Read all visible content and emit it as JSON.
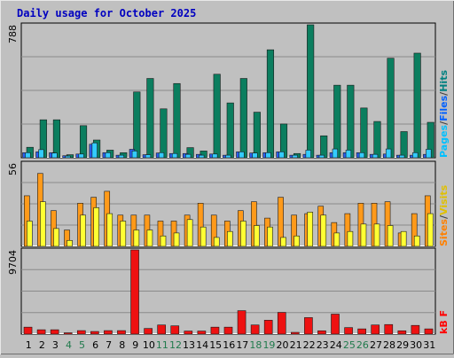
{
  "chart_data": {
    "type": "bar",
    "title": "Daily usage for October 2025",
    "categories": [
      "1",
      "2",
      "3",
      "4",
      "5",
      "6",
      "7",
      "8",
      "9",
      "10",
      "11",
      "12",
      "13",
      "14",
      "15",
      "16",
      "17",
      "18",
      "19",
      "20",
      "21",
      "22",
      "23",
      "24",
      "25",
      "26",
      "27",
      "28",
      "29",
      "30",
      "31"
    ],
    "weekend_days": [
      "4",
      "5",
      "11",
      "12",
      "18",
      "19",
      "25",
      "26"
    ],
    "panels": [
      {
        "id": "top",
        "max_label": "788",
        "ylim": [
          0,
          788
        ],
        "legend": [
          {
            "label": "Pages",
            "color": "#00c0ff"
          },
          {
            "label": "/",
            "color": "#404040"
          },
          {
            "label": "Files",
            "color": "#0060ff"
          },
          {
            "label": "/",
            "color": "#404040"
          },
          {
            "label": "Hits",
            "color": "#008080"
          }
        ],
        "series": [
          {
            "name": "Hits",
            "color": "#0b7e5f",
            "values": [
              62,
              225,
              225,
              18,
              190,
              105,
              45,
              30,
              390,
              470,
              290,
              440,
              60,
              40,
              495,
              325,
              470,
              270,
              640,
              200,
              25,
              788,
              130,
              430,
              430,
              295,
              215,
              590,
              155,
              620,
              210
            ]
          },
          {
            "name": "Files",
            "color": "#2a5ff0",
            "values": [
              30,
              35,
              30,
              12,
              22,
              80,
              30,
              15,
              50,
              18,
              28,
              25,
              25,
              20,
              22,
              15,
              35,
              28,
              30,
              35,
              15,
              20,
              15,
              30,
              30,
              30,
              20,
              22,
              15,
              15,
              20
            ]
          },
          {
            "name": "Pages",
            "color": "#33ccff",
            "values": [
              30,
              48,
              28,
              10,
              22,
              88,
              30,
              15,
              40,
              18,
              30,
              25,
              20,
              15,
              22,
              15,
              35,
              28,
              30,
              35,
              15,
              45,
              15,
              52,
              45,
              30,
              20,
              52,
              15,
              30,
              50
            ]
          }
        ]
      },
      {
        "id": "middle",
        "max_label": "56",
        "ylim": [
          0,
          56
        ],
        "legend": [
          {
            "label": "Sites",
            "color": "#ff8000"
          },
          {
            "label": "/",
            "color": "#404040"
          },
          {
            "label": "Visits",
            "color": "#e0c000"
          }
        ],
        "series": [
          {
            "name": "Visits",
            "color": "#ffff33",
            "values": [
              17,
              30,
              12,
              4,
              21,
              26,
              22,
              17,
              11,
              11,
              7,
              9,
              18,
              13,
              6,
              10,
              17,
              14,
              13,
              6,
              7,
              23,
              21,
              9,
              10,
              15,
              15,
              14,
              10,
              7,
              22
            ]
          },
          {
            "name": "Sites",
            "color": "#ff9a1a",
            "values": [
              34,
              49,
              24,
              11,
              29,
              33,
              37,
              21,
              21,
              21,
              17,
              17,
              21,
              29,
              21,
              17,
              24,
              30,
              19,
              33,
              21,
              22,
              27,
              16,
              22,
              29,
              29,
              30,
              9,
              22,
              34
            ]
          }
        ]
      },
      {
        "id": "bottom",
        "max_label": "9704",
        "ylim": [
          0,
          9704
        ],
        "legend": [
          {
            "label": "kB F",
            "color": "#ff0000"
          }
        ],
        "series": [
          {
            "name": "kB F",
            "color": "#ee1111",
            "values": [
              800,
              500,
              500,
              150,
              400,
              300,
              400,
              400,
              9704,
              650,
              1050,
              950,
              350,
              350,
              800,
              800,
              2700,
              1050,
              1600,
              2500,
              200,
              1900,
              380,
              2300,
              750,
              600,
              1050,
              1100,
              380,
              1000,
              600
            ]
          }
        ]
      }
    ]
  }
}
